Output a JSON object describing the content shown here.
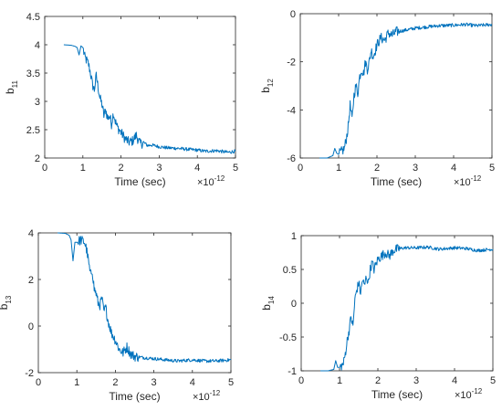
{
  "chart_data": [
    {
      "type": "line",
      "panel": "top-left",
      "xlabel": "Time (sec)",
      "x_exponent_label": "×10",
      "x_exponent": "-12",
      "ylabel_base": "b",
      "ylabel_sub": "11",
      "xlim": [
        0,
        5
      ],
      "ylim": [
        2,
        4.5
      ],
      "xticks": [
        "0",
        "1",
        "2",
        "3",
        "4",
        "5"
      ],
      "yticks": [
        "2",
        "2.5",
        "3",
        "3.5",
        "4",
        "4.5"
      ],
      "color": "#0072BD",
      "series": [
        {
          "x": [
            0.5,
            0.7,
            0.8,
            0.85,
            0.9,
            0.95,
            1.0,
            1.05,
            1.1,
            1.15,
            1.2,
            1.25,
            1.3,
            1.35,
            1.4,
            1.45,
            1.5,
            1.55,
            1.6,
            1.65,
            1.7,
            1.75,
            1.8,
            1.85,
            1.9,
            2.0,
            2.1,
            2.2,
            2.3,
            2.4,
            2.5,
            2.6,
            2.7,
            2.8,
            3.0,
            3.2,
            3.5,
            3.8,
            4.0,
            4.2,
            4.5,
            4.8,
            5.0
          ],
          "values": [
            4.0,
            3.99,
            3.97,
            3.95,
            3.82,
            3.98,
            3.95,
            3.78,
            3.72,
            3.65,
            3.5,
            3.3,
            3.2,
            3.45,
            3.25,
            3.05,
            2.95,
            2.75,
            2.85,
            2.7,
            2.75,
            2.6,
            2.8,
            2.65,
            2.55,
            2.45,
            2.35,
            2.28,
            2.3,
            2.4,
            2.25,
            2.27,
            2.22,
            2.23,
            2.2,
            2.18,
            2.17,
            2.15,
            2.14,
            2.12,
            2.13,
            2.1,
            2.12
          ]
        }
      ]
    },
    {
      "type": "line",
      "panel": "top-right",
      "xlabel": "Time (sec)",
      "x_exponent_label": "×10",
      "x_exponent": "-12",
      "ylabel_base": "b",
      "ylabel_sub": "12",
      "xlim": [
        0,
        5
      ],
      "ylim": [
        -6,
        0
      ],
      "xticks": [
        "0",
        "1",
        "2",
        "3",
        "4",
        "5"
      ],
      "yticks": [
        "-6",
        "-4",
        "-2",
        "0"
      ],
      "color": "#0072BD",
      "series": [
        {
          "x": [
            0.5,
            0.7,
            0.85,
            0.9,
            0.95,
            1.0,
            1.1,
            1.15,
            1.2,
            1.25,
            1.3,
            1.35,
            1.4,
            1.45,
            1.5,
            1.55,
            1.6,
            1.65,
            1.7,
            1.75,
            1.8,
            1.85,
            1.9,
            2.0,
            2.1,
            2.2,
            2.3,
            2.4,
            2.5,
            2.7,
            3.0,
            3.3,
            3.6,
            4.0,
            4.3,
            4.6,
            5.0
          ],
          "values": [
            -6.0,
            -6.0,
            -5.9,
            -5.6,
            -5.8,
            -5.85,
            -5.7,
            -5.6,
            -5.2,
            -4.7,
            -3.8,
            -4.4,
            -3.4,
            -3.0,
            -3.3,
            -2.6,
            -2.3,
            -2.5,
            -2.0,
            -2.3,
            -2.0,
            -1.5,
            -1.8,
            -1.3,
            -1.0,
            -1.1,
            -0.8,
            -0.9,
            -0.75,
            -0.7,
            -0.6,
            -0.55,
            -0.5,
            -0.48,
            -0.45,
            -0.5,
            -0.45
          ]
        }
      ]
    },
    {
      "type": "line",
      "panel": "bottom-left",
      "xlabel": "Time (sec)",
      "x_exponent_label": "×10",
      "x_exponent": "-12",
      "ylabel_base": "b",
      "ylabel_sub": "13",
      "xlim": [
        0,
        5
      ],
      "ylim": [
        -2,
        4
      ],
      "xticks": [
        "0",
        "1",
        "2",
        "3",
        "4",
        "5"
      ],
      "yticks": [
        "-2",
        "0",
        "2",
        "4"
      ],
      "color": "#0072BD",
      "series": [
        {
          "x": [
            0.5,
            0.7,
            0.8,
            0.85,
            0.9,
            0.95,
            1.0,
            1.1,
            1.2,
            1.25,
            1.3,
            1.35,
            1.4,
            1.45,
            1.5,
            1.55,
            1.6,
            1.65,
            1.7,
            1.75,
            1.8,
            1.85,
            1.9,
            2.0,
            2.1,
            2.2,
            2.3,
            2.4,
            2.5,
            2.7,
            3.0,
            3.3,
            3.6,
            4.0,
            4.3,
            4.6,
            5.0
          ],
          "values": [
            4.0,
            3.98,
            3.9,
            3.7,
            2.8,
            3.6,
            3.6,
            3.7,
            3.6,
            3.3,
            2.8,
            2.2,
            2.4,
            1.6,
            1.4,
            1.0,
            0.9,
            1.2,
            0.6,
            0.8,
            0.3,
            0.0,
            -0.3,
            -0.6,
            -1.0,
            -1.15,
            -0.9,
            -1.2,
            -1.3,
            -1.35,
            -1.4,
            -1.45,
            -1.5,
            -1.45,
            -1.5,
            -1.5,
            -1.45
          ]
        }
      ]
    },
    {
      "type": "line",
      "panel": "bottom-right",
      "xlabel": "Time (sec)",
      "x_exponent_label": "×10",
      "x_exponent": "-12",
      "ylabel_base": "b",
      "ylabel_sub": "14",
      "xlim": [
        0,
        5
      ],
      "ylim": [
        -1,
        1
      ],
      "xticks": [
        "0",
        "1",
        "2",
        "3",
        "4",
        "5"
      ],
      "yticks": [
        "-1",
        "-0.5",
        "0",
        "0.5",
        "1"
      ],
      "color": "#0072BD",
      "series": [
        {
          "x": [
            0.5,
            0.7,
            0.85,
            0.9,
            0.95,
            1.0,
            1.1,
            1.15,
            1.2,
            1.25,
            1.3,
            1.35,
            1.4,
            1.45,
            1.5,
            1.55,
            1.6,
            1.65,
            1.7,
            1.75,
            1.8,
            1.85,
            1.9,
            2.0,
            2.1,
            2.2,
            2.3,
            2.4,
            2.5,
            2.7,
            3.0,
            3.3,
            3.6,
            4.0,
            4.3,
            4.6,
            5.0
          ],
          "values": [
            -1.0,
            -1.0,
            -0.98,
            -0.85,
            -0.95,
            -0.95,
            -0.9,
            -0.75,
            -0.55,
            -0.4,
            -0.2,
            -0.35,
            0.05,
            0.2,
            0.3,
            0.15,
            0.35,
            0.25,
            0.4,
            0.3,
            0.5,
            0.6,
            0.5,
            0.65,
            0.7,
            0.75,
            0.7,
            0.78,
            0.8,
            0.82,
            0.82,
            0.83,
            0.8,
            0.82,
            0.81,
            0.78,
            0.8
          ]
        }
      ]
    }
  ]
}
